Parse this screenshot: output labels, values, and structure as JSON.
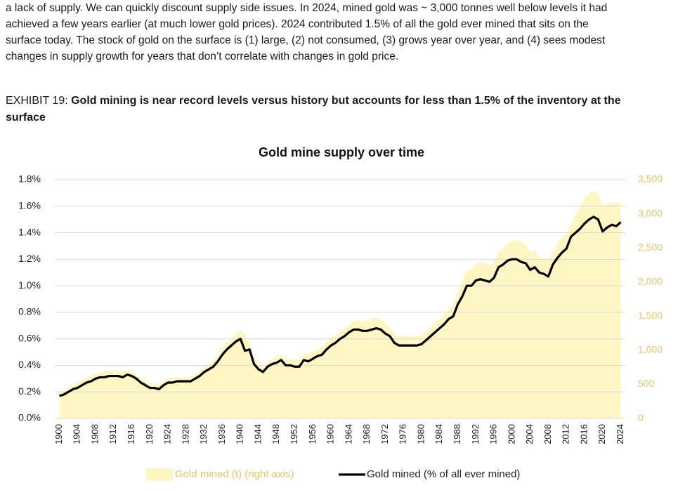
{
  "intro_lines": [
    "a lack of supply. We can quickly discount supply side issues. In 2024, mined gold was ~ 3,000 tonnes well below levels it had",
    "achieved a few years earlier (at much lower gold prices). 2024 contributed 1.5% of all the gold ever mined that sits on the",
    "surface today. The stock of gold on the surface is (1) large, (2) not consumed, (3) grows year over year, and (4) sees modest",
    "changes in supply growth for years that don’t correlate with changes in gold price."
  ],
  "exhibit": {
    "label": "EXHIBIT 19:",
    "title_lines": [
      "Gold mining is near record levels versus history but accounts for less than 1.5% of the inventory at the",
      "surface"
    ]
  },
  "chart_data": {
    "type": "line",
    "title": "Gold mine supply over time",
    "x": [
      1900,
      1901,
      1902,
      1903,
      1904,
      1905,
      1906,
      1907,
      1908,
      1909,
      1910,
      1911,
      1912,
      1913,
      1914,
      1915,
      1916,
      1917,
      1918,
      1919,
      1920,
      1921,
      1922,
      1923,
      1924,
      1925,
      1926,
      1927,
      1928,
      1929,
      1930,
      1931,
      1932,
      1933,
      1934,
      1935,
      1936,
      1937,
      1938,
      1939,
      1940,
      1941,
      1942,
      1943,
      1944,
      1945,
      1946,
      1947,
      1948,
      1949,
      1950,
      1951,
      1952,
      1953,
      1954,
      1955,
      1956,
      1957,
      1958,
      1959,
      1960,
      1961,
      1962,
      1963,
      1964,
      1965,
      1966,
      1967,
      1968,
      1969,
      1970,
      1971,
      1972,
      1973,
      1974,
      1975,
      1976,
      1977,
      1978,
      1979,
      1980,
      1981,
      1982,
      1983,
      1984,
      1985,
      1986,
      1987,
      1988,
      1989,
      1990,
      1991,
      1992,
      1993,
      1994,
      1995,
      1996,
      1997,
      1998,
      1999,
      2000,
      2001,
      2002,
      2003,
      2004,
      2005,
      2006,
      2007,
      2008,
      2009,
      2010,
      2011,
      2012,
      2013,
      2014,
      2015,
      2016,
      2017,
      2018,
      2019,
      2020,
      2021,
      2022,
      2023,
      2024
    ],
    "series": [
      {
        "name": "Gold mined (t) (right axis)",
        "color": "#fff6c4",
        "legend_text_color": "#e2c56a",
        "axis": "y2",
        "style": "area",
        "values": [
          390,
          400,
          450,
          490,
          520,
          560,
          600,
          620,
          660,
          680,
          690,
          700,
          710,
          700,
          680,
          710,
          690,
          640,
          580,
          550,
          510,
          500,
          490,
          550,
          590,
          590,
          600,
          600,
          600,
          610,
          650,
          690,
          760,
          790,
          850,
          930,
          1050,
          1110,
          1170,
          1240,
          1300,
          1230,
          1100,
          890,
          800,
          740,
          830,
          870,
          900,
          930,
          860,
          860,
          870,
          860,
          940,
          950,
          980,
          1020,
          1050,
          1120,
          1190,
          1220,
          1280,
          1320,
          1380,
          1420,
          1440,
          1420,
          1440,
          1460,
          1480,
          1450,
          1390,
          1340,
          1240,
          1200,
          1210,
          1210,
          1210,
          1210,
          1220,
          1280,
          1340,
          1400,
          1460,
          1530,
          1610,
          1660,
          1850,
          2000,
          2180,
          2180,
          2260,
          2290,
          2280,
          2240,
          2300,
          2450,
          2500,
          2570,
          2600,
          2620,
          2580,
          2550,
          2430,
          2470,
          2370,
          2350,
          2300,
          2460,
          2560,
          2660,
          2700,
          2860,
          2990,
          3100,
          3230,
          3290,
          3330,
          3300,
          3120,
          3140,
          3160,
          3170,
          3150
        ]
      },
      {
        "name": "Gold mined (% of all ever mined)",
        "color": "#000000",
        "axis": "y",
        "style": "line",
        "values": [
          0.17,
          0.18,
          0.2,
          0.22,
          0.23,
          0.25,
          0.27,
          0.28,
          0.3,
          0.31,
          0.31,
          0.32,
          0.32,
          0.32,
          0.31,
          0.33,
          0.32,
          0.3,
          0.27,
          0.25,
          0.23,
          0.23,
          0.22,
          0.25,
          0.27,
          0.27,
          0.28,
          0.28,
          0.28,
          0.28,
          0.3,
          0.32,
          0.35,
          0.37,
          0.39,
          0.43,
          0.48,
          0.52,
          0.55,
          0.58,
          0.6,
          0.51,
          0.52,
          0.41,
          0.37,
          0.35,
          0.39,
          0.41,
          0.42,
          0.44,
          0.4,
          0.4,
          0.39,
          0.39,
          0.44,
          0.43,
          0.45,
          0.47,
          0.48,
          0.52,
          0.55,
          0.57,
          0.6,
          0.62,
          0.65,
          0.67,
          0.67,
          0.66,
          0.66,
          0.67,
          0.68,
          0.67,
          0.64,
          0.62,
          0.57,
          0.55,
          0.55,
          0.55,
          0.55,
          0.55,
          0.56,
          0.59,
          0.62,
          0.65,
          0.68,
          0.71,
          0.75,
          0.77,
          0.86,
          0.92,
          1.0,
          1.0,
          1.04,
          1.05,
          1.04,
          1.03,
          1.06,
          1.14,
          1.16,
          1.19,
          1.2,
          1.2,
          1.18,
          1.17,
          1.12,
          1.14,
          1.1,
          1.09,
          1.07,
          1.16,
          1.21,
          1.25,
          1.28,
          1.37,
          1.4,
          1.43,
          1.47,
          1.5,
          1.52,
          1.5,
          1.41,
          1.44,
          1.46,
          1.45,
          1.48
        ]
      }
    ],
    "xlim": [
      1899,
      2025
    ],
    "xticks": [
      1900,
      1904,
      1908,
      1912,
      1916,
      1920,
      1924,
      1928,
      1932,
      1936,
      1940,
      1944,
      1948,
      1952,
      1956,
      1960,
      1964,
      1968,
      1972,
      1976,
      1980,
      1984,
      1988,
      1992,
      1996,
      2000,
      2004,
      2008,
      2012,
      2016,
      2020,
      2024
    ],
    "ylim": [
      0,
      1.8
    ],
    "yticks": [
      {
        "value": 0,
        "label": "0.0%"
      },
      {
        "value": 0.2,
        "label": "0.2%"
      },
      {
        "value": 0.4,
        "label": "0.4%"
      },
      {
        "value": 0.6,
        "label": "0.6%"
      },
      {
        "value": 0.8,
        "label": "0.8%"
      },
      {
        "value": 1.0,
        "label": "1.0%"
      },
      {
        "value": 1.2,
        "label": "1.2%"
      },
      {
        "value": 1.4,
        "label": "1.4%"
      },
      {
        "value": 1.6,
        "label": "1.6%"
      },
      {
        "value": 1.8,
        "label": "1.8%"
      }
    ],
    "y2lim": [
      0,
      3500
    ],
    "y2ticks": [
      0,
      500,
      {
        "value": 1000,
        "label": "1,000"
      },
      {
        "value": 1500,
        "label": "1,500"
      },
      {
        "value": 2000,
        "label": "2,000"
      },
      {
        "value": 2500,
        "label": "2,500"
      },
      {
        "value": 3000,
        "label": "3,000"
      },
      {
        "value": 3500,
        "label": "3,500"
      }
    ],
    "y2_tick_color": "#e2c56a",
    "grid": true,
    "legend": "bottom"
  }
}
